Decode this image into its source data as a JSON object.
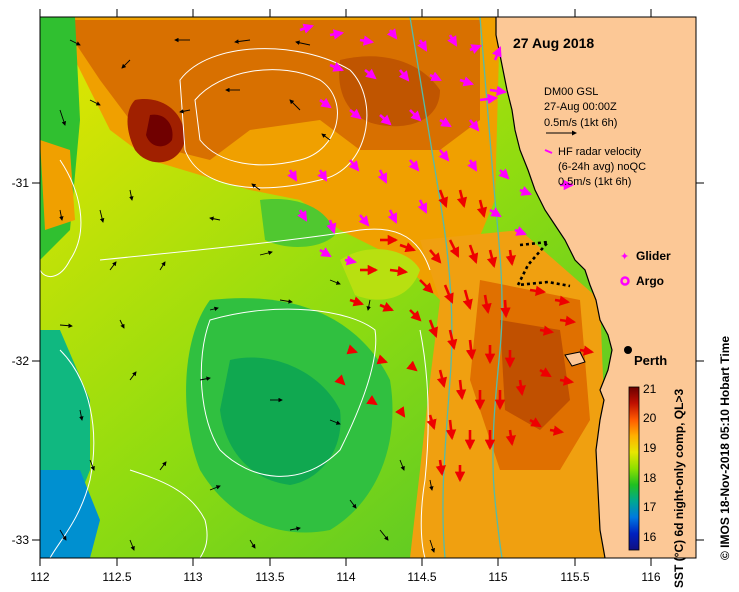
{
  "map": {
    "date_title": "27 Aug 2018",
    "x_ticks": [
      "112",
      "112.5",
      "113",
      "113.5",
      "114",
      "114.5",
      "115",
      "115.5",
      "116"
    ],
    "y_ticks": [
      "-31",
      "-32",
      "-33"
    ],
    "place_label": "Perth",
    "colors": {
      "land": "#fcc896",
      "coast": "#000000",
      "model_arrow": "#000000",
      "radar_arrow": "#ff00ff",
      "current_arrow": "#ee0000",
      "contour": "#ffffff",
      "isobath": "#55bbaa",
      "glider_track": "#000000"
    }
  },
  "legend": {
    "model_title": "DM00 GSL",
    "model_time": "27-Aug 00:00Z",
    "model_scale": "0.5m/s (1kt 6h)",
    "radar_title": "HF radar velocity",
    "radar_avg": "(6-24h avg) noQC",
    "radar_scale": "0.5m/s (1kt 6h)",
    "glider_label": "Glider",
    "argo_label": "Argo"
  },
  "colorbar": {
    "ticks": [
      "21",
      "20",
      "19",
      "18",
      "17",
      "16"
    ],
    "range": [
      15.5,
      21
    ],
    "title": "SST (°C) 6d night-only comp, QL>3",
    "stops": [
      "#6a0000",
      "#c01000",
      "#ff5a00",
      "#ffb000",
      "#e8e600",
      "#8ee000",
      "#20c020",
      "#00a890",
      "#0078e0",
      "#0020c0",
      "#101080"
    ]
  },
  "credit": "© IMOS 18-Nov-2018 05:10 Hobart Time"
}
